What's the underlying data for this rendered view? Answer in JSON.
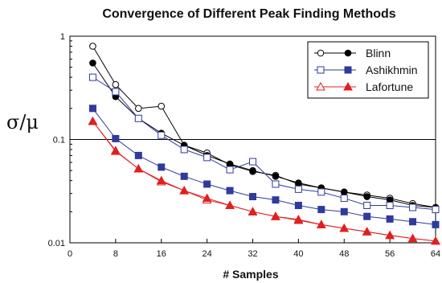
{
  "chart_data": {
    "type": "line",
    "title": "Convergence of Different Peak Finding Methods",
    "xlabel": "# Samples",
    "ylabel": "σ/μ",
    "xlim": [
      0,
      64
    ],
    "ylim": [
      0.01,
      1
    ],
    "yscale": "log",
    "x_ticks": [
      "0",
      "8",
      "16",
      "24",
      "32",
      "40",
      "48",
      "56",
      "64"
    ],
    "x_tick_values": [
      0,
      8,
      16,
      24,
      32,
      40,
      48,
      56,
      64
    ],
    "y_ticks": [
      "1",
      "0.1",
      "0.01"
    ],
    "y_tick_values": [
      1,
      0.1,
      0.01
    ],
    "gridlines_y": [
      0.1
    ],
    "legend_position": "top-right",
    "x": [
      4,
      8,
      12,
      16,
      20,
      24,
      28,
      32,
      36,
      40,
      44,
      48,
      52,
      56,
      60,
      64
    ],
    "series": [
      {
        "name": "Blinn",
        "variant": "open",
        "marker": "circle",
        "color": "#000000",
        "values": [
          0.8,
          0.34,
          0.2,
          0.21,
          0.088,
          0.074,
          0.057,
          0.049,
          0.045,
          0.037,
          0.034,
          0.031,
          0.029,
          0.027,
          0.024,
          0.022
        ]
      },
      {
        "name": "Blinn",
        "variant": "filled",
        "marker": "circle",
        "color": "#000000",
        "values": [
          0.55,
          0.26,
          0.16,
          0.115,
          0.088,
          0.07,
          0.058,
          0.05,
          0.044,
          0.038,
          0.034,
          0.031,
          0.028,
          0.026,
          0.023,
          0.022
        ]
      },
      {
        "name": "Ashikhmin",
        "variant": "open",
        "marker": "square",
        "color": "#2e3a9e",
        "values": [
          0.4,
          0.29,
          0.16,
          0.11,
          0.08,
          0.067,
          0.051,
          0.061,
          0.037,
          0.033,
          0.031,
          0.027,
          0.023,
          0.023,
          0.022,
          0.021
        ]
      },
      {
        "name": "Ashikhmin",
        "variant": "filled",
        "marker": "square",
        "color": "#2e3a9e",
        "values": [
          0.2,
          0.102,
          0.07,
          0.054,
          0.044,
          0.037,
          0.032,
          0.028,
          0.026,
          0.023,
          0.021,
          0.02,
          0.018,
          0.017,
          0.016,
          0.015
        ]
      },
      {
        "name": "Lafortune",
        "variant": "open",
        "marker": "triangle",
        "color": "#e02020",
        "values": [
          0.15,
          0.077,
          0.052,
          0.039,
          0.032,
          0.026,
          0.023,
          0.02,
          0.018,
          0.0165,
          0.015,
          0.0138,
          0.0128,
          0.0118,
          0.011,
          0.0104
        ]
      },
      {
        "name": "Lafortune",
        "variant": "filled",
        "marker": "triangle",
        "color": "#e02020",
        "values": [
          0.15,
          0.078,
          0.052,
          0.04,
          0.032,
          0.027,
          0.023,
          0.02,
          0.018,
          0.0168,
          0.015,
          0.0138,
          0.0128,
          0.0118,
          0.011,
          0.0104
        ]
      }
    ],
    "legend": [
      {
        "label": "Blinn",
        "marker": "circle",
        "color": "#000000"
      },
      {
        "label": "Ashikhmin",
        "marker": "square",
        "color": "#2e3a9e"
      },
      {
        "label": "Lafortune",
        "marker": "triangle",
        "color": "#e02020"
      }
    ]
  }
}
